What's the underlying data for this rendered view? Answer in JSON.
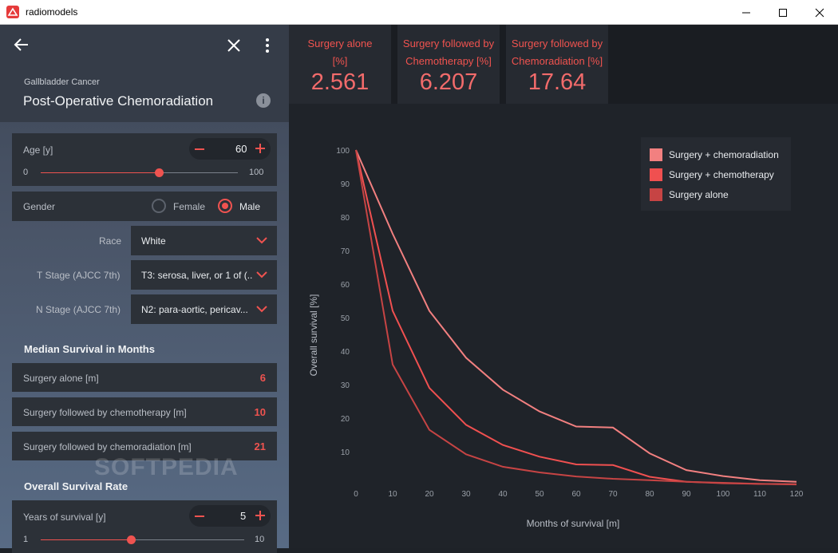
{
  "window": {
    "title": "radiomodels",
    "minimize": "—",
    "maximize": "☐",
    "close": "✕"
  },
  "header": {
    "subtitle": "Gallbladder Cancer",
    "title": "Post-Operative Chemoradiation"
  },
  "inputs": {
    "age": {
      "label": "Age [y]",
      "value": "60",
      "min": "0",
      "max": "100",
      "fraction": 0.6
    },
    "gender": {
      "label": "Gender",
      "options": [
        "Female",
        "Male"
      ],
      "selected": "Male"
    },
    "race": {
      "label": "Race",
      "value": "White"
    },
    "t_stage": {
      "label": "T Stage (AJCC 7th)",
      "value": "T3: serosa, liver, or 1 of (..."
    },
    "n_stage": {
      "label": "N Stage (AJCC 7th)",
      "value": "N2: para-aortic, pericav..."
    }
  },
  "median_survival": {
    "title": "Median Survival in Months",
    "rows": [
      {
        "label": "Surgery alone [m]",
        "value": "6"
      },
      {
        "label": "Surgery followed by chemotherapy [m]",
        "value": "10"
      },
      {
        "label": "Surgery followed by chemoradiation [m]",
        "value": "21"
      }
    ]
  },
  "overall_survival": {
    "title": "Overall Survival Rate",
    "years": {
      "label": "Years of survival [y]",
      "value": "5",
      "min": "1",
      "max": "10",
      "fraction": 0.4444
    }
  },
  "result_cards": [
    {
      "line1": "Surgery alone",
      "line2": "[%]",
      "value": "2.561"
    },
    {
      "line1": "Surgery followed by",
      "line2": "Chemotherapy [%]",
      "value": "6.207"
    },
    {
      "line1": "Surgery followed by",
      "line2": "Chemoradiation [%]",
      "value": "17.64"
    }
  ],
  "watermark": "SOFTPEDIA",
  "colors": {
    "accent": "#ef5350",
    "series_chemorad": "#f28080",
    "series_chemo": "#f05050",
    "series_alone": "#c64444"
  },
  "chart_data": {
    "type": "line",
    "xlabel": "Months of survival [m]",
    "ylabel": "Overall survival [%]",
    "xlim": [
      0,
      120
    ],
    "ylim": [
      0,
      100
    ],
    "xticks": [
      0,
      10,
      20,
      30,
      40,
      50,
      60,
      70,
      80,
      90,
      100,
      110,
      120
    ],
    "yticks": [
      10,
      20,
      30,
      40,
      50,
      60,
      70,
      80,
      90,
      100
    ],
    "grid": false,
    "legend_position": "top-right",
    "series": [
      {
        "name": "Surgery + chemoradiation",
        "color": "#f28080",
        "x": [
          0,
          10,
          20,
          30,
          40,
          50,
          60,
          70,
          80,
          90,
          100,
          110,
          120
        ],
        "y": [
          100,
          75,
          52,
          38,
          28.5,
          22,
          17.5,
          17.2,
          9.5,
          4.5,
          2.7,
          1.5,
          1.0
        ]
      },
      {
        "name": "Surgery + chemotherapy",
        "color": "#f05050",
        "x": [
          0,
          10,
          20,
          30,
          40,
          50,
          60,
          70,
          80,
          90,
          100,
          110,
          120
        ],
        "y": [
          100,
          52,
          29,
          18,
          12,
          8.5,
          6.2,
          6.0,
          2.5,
          1.0,
          0.6,
          0.4,
          0.3
        ]
      },
      {
        "name": "Surgery alone",
        "color": "#c64444",
        "x": [
          0,
          10,
          20,
          30,
          40,
          50,
          60,
          70,
          80,
          90,
          100,
          110,
          120
        ],
        "y": [
          100,
          36,
          16.5,
          9.2,
          5.5,
          3.8,
          2.6,
          1.9,
          1.5,
          1.0,
          0.7,
          0.4,
          0.2
        ]
      }
    ]
  }
}
